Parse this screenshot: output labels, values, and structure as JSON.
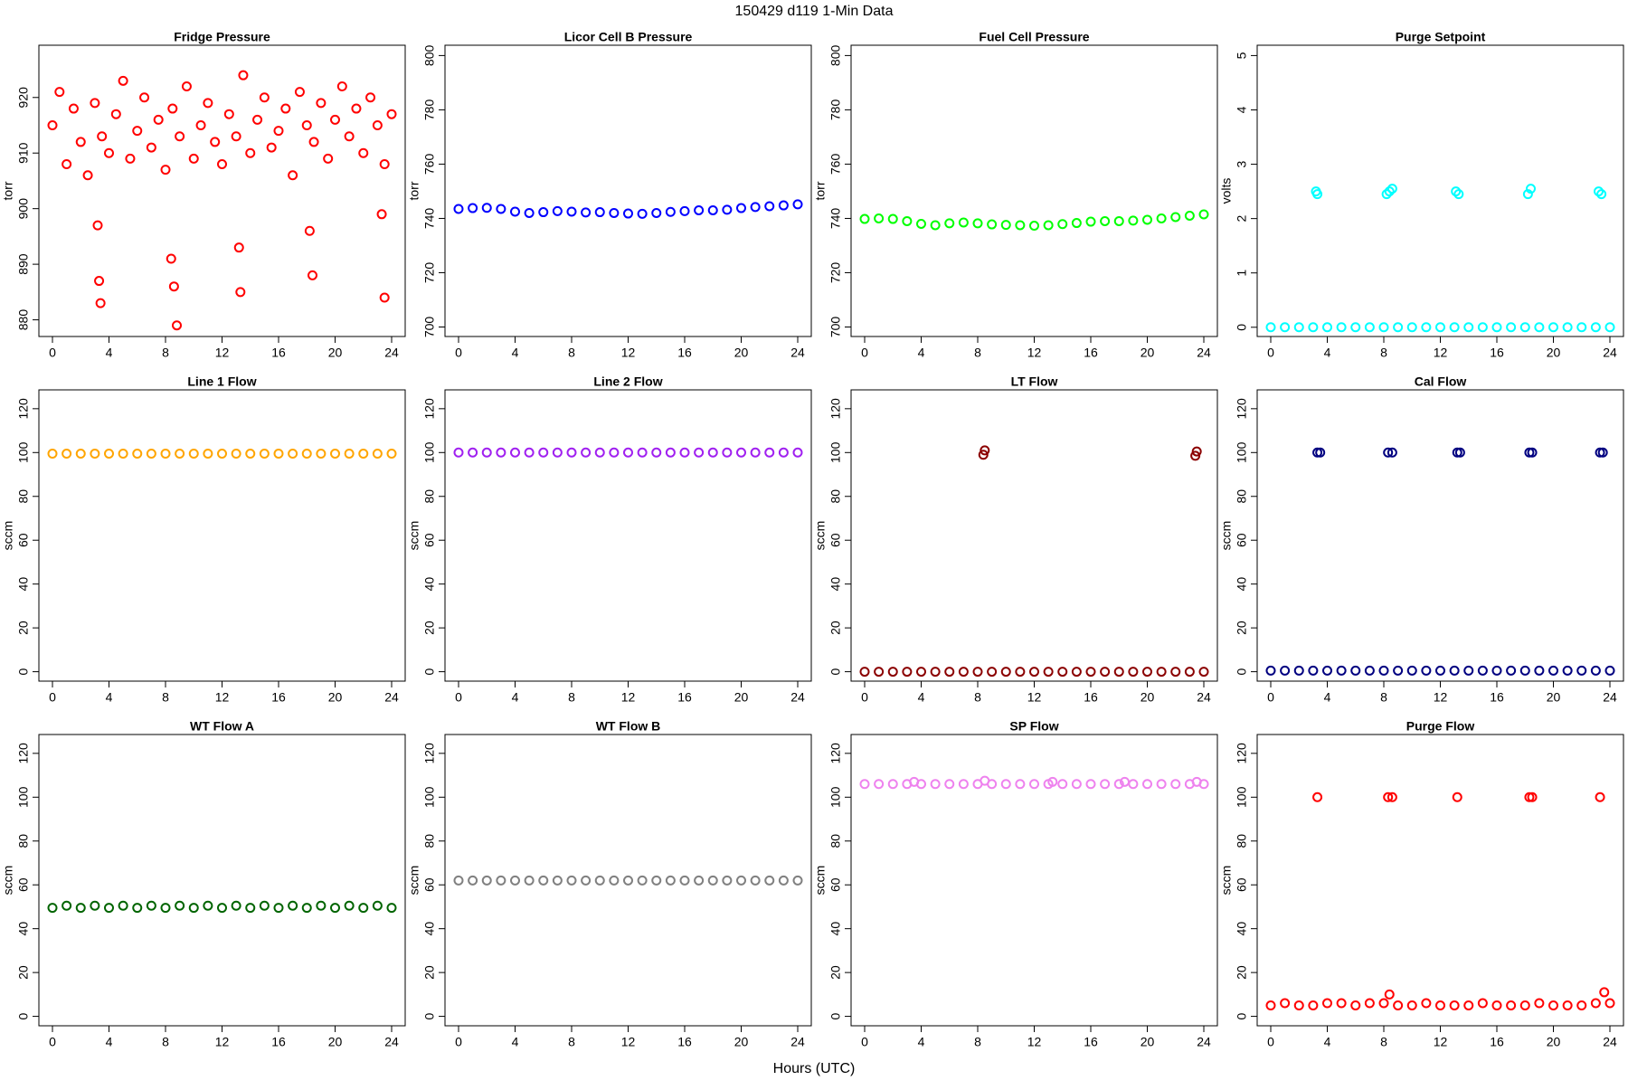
{
  "title": "150429   d119   1-Min Data",
  "xlabel": "Hours (UTC)",
  "chart_data": [
    {
      "type": "scatter",
      "title": "Fridge Pressure",
      "ylabel": "torr",
      "color": "#ff0000",
      "x": [
        0,
        0.5,
        1,
        1.5,
        2,
        2.5,
        3,
        3.5,
        4,
        4.5,
        5,
        5.5,
        6,
        6.5,
        7,
        7.5,
        8,
        8.5,
        9,
        9.5,
        10,
        10.5,
        11,
        11.5,
        12,
        12.5,
        13,
        13.5,
        14,
        14.5,
        15,
        15.5,
        16,
        16.5,
        17,
        17.5,
        18,
        18.5,
        19,
        19.5,
        20,
        20.5,
        21,
        21.5,
        22,
        22.5,
        23,
        23.5,
        24,
        3.2,
        3.3,
        3.4,
        8.4,
        8.6,
        8.8,
        13.2,
        13.3,
        18.2,
        18.4,
        23.3,
        23.5
      ],
      "values": [
        915,
        921,
        908,
        918,
        912,
        906,
        919,
        913,
        910,
        917,
        923,
        909,
        914,
        920,
        911,
        916,
        907,
        918,
        913,
        922,
        909,
        915,
        919,
        912,
        908,
        917,
        913,
        924,
        910,
        916,
        920,
        911,
        914,
        918,
        906,
        921,
        915,
        912,
        919,
        909,
        916,
        922,
        913,
        918,
        910,
        920,
        915,
        908,
        917,
        897,
        887,
        883,
        891,
        886,
        879,
        893,
        885,
        896,
        888,
        899,
        884
      ],
      "xlim": [
        -0.96,
        24.96
      ],
      "xticks": [
        0,
        4,
        8,
        12,
        16,
        20,
        24
      ],
      "ylim": [
        877,
        929.4
      ],
      "yticks": [
        880,
        890,
        900,
        910,
        920
      ]
    },
    {
      "type": "scatter",
      "title": "Licor Cell B Pressure",
      "ylabel": "torr",
      "color": "#0000ff",
      "x": [
        0,
        1,
        2,
        3,
        4,
        5,
        6,
        7,
        8,
        9,
        10,
        11,
        12,
        13,
        14,
        15,
        16,
        17,
        18,
        19,
        20,
        21,
        22,
        23,
        24
      ],
      "values": [
        743.5,
        743.8,
        743.9,
        743.5,
        742.5,
        742.0,
        742.3,
        742.7,
        742.5,
        742.2,
        742.3,
        742.0,
        741.8,
        741.7,
        742.0,
        742.4,
        742.7,
        743.0,
        743.0,
        743.2,
        743.8,
        744.2,
        744.5,
        744.8,
        745.2
      ],
      "xlim": [
        -0.96,
        24.96
      ],
      "xticks": [
        0,
        4,
        8,
        12,
        16,
        20,
        24
      ],
      "ylim": [
        696.5,
        803.8
      ],
      "yticks": [
        700,
        720,
        740,
        760,
        780,
        800
      ]
    },
    {
      "type": "scatter",
      "title": "Fuel Cell Pressure",
      "ylabel": "torr",
      "color": "#00ff00",
      "x": [
        0,
        1,
        2,
        3,
        4,
        5,
        6,
        7,
        8,
        9,
        10,
        11,
        12,
        13,
        14,
        15,
        16,
        17,
        18,
        19,
        20,
        21,
        22,
        23,
        24
      ],
      "values": [
        739.8,
        740.0,
        739.8,
        739.0,
        738.0,
        737.5,
        738.2,
        738.5,
        738.2,
        737.8,
        737.6,
        737.5,
        737.3,
        737.5,
        737.9,
        738.3,
        738.8,
        739.0,
        739.0,
        739.2,
        739.5,
        740.0,
        740.5,
        741.0,
        741.5
      ],
      "xlim": [
        -0.96,
        24.96
      ],
      "xticks": [
        0,
        4,
        8,
        12,
        16,
        20,
        24
      ],
      "ylim": [
        696.5,
        803.8
      ],
      "yticks": [
        700,
        720,
        740,
        760,
        780,
        800
      ]
    },
    {
      "type": "scatter",
      "title": "Purge Setpoint",
      "ylabel": "volts",
      "color": "#00ffff",
      "x": [
        0,
        1,
        2,
        3,
        4,
        5,
        6,
        7,
        8,
        9,
        10,
        11,
        12,
        13,
        14,
        15,
        16,
        17,
        18,
        19,
        20,
        21,
        22,
        23,
        24,
        3.2,
        3.3,
        8.2,
        8.4,
        8.6,
        13.1,
        13.3,
        18.2,
        18.4,
        23.2,
        23.4
      ],
      "values": [
        0,
        0,
        0,
        0,
        0,
        0,
        0,
        0,
        0,
        0,
        0,
        0,
        0,
        0,
        0,
        0,
        0,
        0,
        0,
        0,
        0,
        0,
        0,
        0,
        0,
        2.5,
        2.45,
        2.45,
        2.5,
        2.55,
        2.5,
        2.45,
        2.45,
        2.55,
        2.5,
        2.45
      ],
      "xlim": [
        -0.96,
        24.96
      ],
      "xticks": [
        0,
        4,
        8,
        12,
        16,
        20,
        24
      ],
      "ylim": [
        -0.17,
        5.19
      ],
      "yticks": [
        0,
        1,
        2,
        3,
        4,
        5
      ]
    },
    {
      "type": "scatter",
      "title": "Line 1 Flow",
      "ylabel": "sccm",
      "color": "#ffa500",
      "x": [
        0,
        1,
        2,
        3,
        4,
        5,
        6,
        7,
        8,
        9,
        10,
        11,
        12,
        13,
        14,
        15,
        16,
        17,
        18,
        19,
        20,
        21,
        22,
        23,
        24
      ],
      "values": [
        99.5,
        99.5,
        99.5,
        99.5,
        99.5,
        99.5,
        99.5,
        99.5,
        99.5,
        99.5,
        99.5,
        99.5,
        99.5,
        99.5,
        99.5,
        99.5,
        99.5,
        99.5,
        99.5,
        99.5,
        99.5,
        99.5,
        99.5,
        99.5,
        99.5
      ],
      "xlim": [
        -0.96,
        24.96
      ],
      "xticks": [
        0,
        4,
        8,
        12,
        16,
        20,
        24
      ],
      "ylim": [
        -4.3,
        128.6
      ],
      "yticks": [
        0,
        20,
        40,
        60,
        80,
        100,
        120
      ]
    },
    {
      "type": "scatter",
      "title": "Line 2 Flow",
      "ylabel": "sccm",
      "color": "#a020f0",
      "x": [
        0,
        1,
        2,
        3,
        4,
        5,
        6,
        7,
        8,
        9,
        10,
        11,
        12,
        13,
        14,
        15,
        16,
        17,
        18,
        19,
        20,
        21,
        22,
        23,
        24
      ],
      "values": [
        100,
        100,
        100,
        100,
        100,
        100,
        100,
        100,
        100,
        100,
        100,
        100,
        100,
        100,
        100,
        100,
        100,
        100,
        100,
        100,
        100,
        100,
        100,
        100,
        100
      ],
      "xlim": [
        -0.96,
        24.96
      ],
      "xticks": [
        0,
        4,
        8,
        12,
        16,
        20,
        24
      ],
      "ylim": [
        -4.3,
        128.6
      ],
      "yticks": [
        0,
        20,
        40,
        60,
        80,
        100,
        120
      ]
    },
    {
      "type": "scatter",
      "title": "LT Flow",
      "ylabel": "sccm",
      "color": "#8b0000",
      "x": [
        0,
        1,
        2,
        3,
        4,
        5,
        6,
        7,
        8,
        9,
        10,
        11,
        12,
        13,
        14,
        15,
        16,
        17,
        18,
        19,
        20,
        21,
        22,
        23,
        24,
        8.4,
        8.5,
        23.4,
        23.5
      ],
      "values": [
        0,
        0,
        0,
        0,
        0,
        0,
        0,
        0,
        0,
        0,
        0,
        0,
        0,
        0,
        0,
        0,
        0,
        0,
        0,
        0,
        0,
        0,
        0,
        0,
        0,
        99,
        101,
        98.5,
        100.5
      ],
      "xlim": [
        -0.96,
        24.96
      ],
      "xticks": [
        0,
        4,
        8,
        12,
        16,
        20,
        24
      ],
      "ylim": [
        -4.3,
        128.6
      ],
      "yticks": [
        0,
        20,
        40,
        60,
        80,
        100,
        120
      ]
    },
    {
      "type": "scatter",
      "title": "Cal Flow",
      "ylabel": "sccm",
      "color": "#000080",
      "x": [
        0,
        1,
        2,
        3,
        4,
        5,
        6,
        7,
        8,
        9,
        10,
        11,
        12,
        13,
        14,
        15,
        16,
        17,
        18,
        19,
        20,
        21,
        22,
        23,
        24,
        3.3,
        3.5,
        8.3,
        8.6,
        13.2,
        13.4,
        18.3,
        18.5,
        23.3,
        23.5
      ],
      "values": [
        0.5,
        0.5,
        0.5,
        0.5,
        0.5,
        0.5,
        0.5,
        0.5,
        0.5,
        0.5,
        0.5,
        0.5,
        0.5,
        0.5,
        0.5,
        0.5,
        0.5,
        0.5,
        0.5,
        0.5,
        0.5,
        0.5,
        0.5,
        0.5,
        0.5,
        100,
        100,
        100,
        100,
        100,
        100,
        100,
        100,
        100,
        100
      ],
      "xlim": [
        -0.96,
        24.96
      ],
      "xticks": [
        0,
        4,
        8,
        12,
        16,
        20,
        24
      ],
      "ylim": [
        -4.3,
        128.6
      ],
      "yticks": [
        0,
        20,
        40,
        60,
        80,
        100,
        120
      ]
    },
    {
      "type": "scatter",
      "title": "WT Flow A",
      "ylabel": "sccm",
      "color": "#006400",
      "x": [
        0,
        1,
        2,
        3,
        4,
        5,
        6,
        7,
        8,
        9,
        10,
        11,
        12,
        13,
        14,
        15,
        16,
        17,
        18,
        19,
        20,
        21,
        22,
        23,
        24
      ],
      "values": [
        49.5,
        50.5,
        49.5,
        50.5,
        49.5,
        50.5,
        49.5,
        50.5,
        49.5,
        50.5,
        49.5,
        50.5,
        49.5,
        50.5,
        49.5,
        50.5,
        49.5,
        50.5,
        49.5,
        50.5,
        49.5,
        50.5,
        49.5,
        50.5,
        49.5
      ],
      "xlim": [
        -0.96,
        24.96
      ],
      "xticks": [
        0,
        4,
        8,
        12,
        16,
        20,
        24
      ],
      "ylim": [
        -4.3,
        128.6
      ],
      "yticks": [
        0,
        20,
        40,
        60,
        80,
        100,
        120
      ]
    },
    {
      "type": "scatter",
      "title": "WT Flow B",
      "ylabel": "sccm",
      "color": "#808080",
      "x": [
        0,
        1,
        2,
        3,
        4,
        5,
        6,
        7,
        8,
        9,
        10,
        11,
        12,
        13,
        14,
        15,
        16,
        17,
        18,
        19,
        20,
        21,
        22,
        23,
        24
      ],
      "values": [
        62,
        62,
        62,
        62,
        62,
        62,
        62,
        62,
        62,
        62,
        62,
        62,
        62,
        62,
        62,
        62,
        62,
        62,
        62,
        62,
        62,
        62,
        62,
        62,
        62
      ],
      "xlim": [
        -0.96,
        24.96
      ],
      "xticks": [
        0,
        4,
        8,
        12,
        16,
        20,
        24
      ],
      "ylim": [
        -4.3,
        128.6
      ],
      "yticks": [
        0,
        20,
        40,
        60,
        80,
        100,
        120
      ]
    },
    {
      "type": "scatter",
      "title": "SP Flow",
      "ylabel": "sccm",
      "color": "#ee82ee",
      "x": [
        0,
        1,
        2,
        3,
        4,
        5,
        6,
        7,
        8,
        9,
        10,
        11,
        12,
        13,
        14,
        15,
        16,
        17,
        18,
        19,
        20,
        21,
        22,
        23,
        24,
        3.5,
        8.5,
        13.3,
        18.4,
        23.5
      ],
      "values": [
        106,
        106,
        106,
        106,
        106,
        106,
        106,
        106,
        106,
        106,
        106,
        106,
        106,
        106,
        106,
        106,
        106,
        106,
        106,
        106,
        106,
        106,
        106,
        106,
        106,
        107,
        107.5,
        107,
        107,
        107
      ],
      "xlim": [
        -0.96,
        24.96
      ],
      "xticks": [
        0,
        4,
        8,
        12,
        16,
        20,
        24
      ],
      "ylim": [
        -4.3,
        128.6
      ],
      "yticks": [
        0,
        20,
        40,
        60,
        80,
        100,
        120
      ]
    },
    {
      "type": "scatter",
      "title": "Purge Flow",
      "ylabel": "sccm",
      "color": "#ff0000",
      "x": [
        0,
        1,
        2,
        3,
        4,
        5,
        6,
        7,
        8,
        9,
        10,
        11,
        12,
        13,
        14,
        15,
        16,
        17,
        18,
        19,
        20,
        21,
        22,
        23,
        24,
        3.3,
        8.3,
        8.6,
        13.2,
        18.3,
        18.5,
        23.3,
        8.4,
        23.6
      ],
      "values": [
        5,
        6,
        5,
        5,
        6,
        6,
        5,
        6,
        6,
        5,
        5,
        6,
        5,
        5,
        5,
        6,
        5,
        5,
        5,
        6,
        5,
        5,
        5,
        6,
        6,
        100,
        100,
        100,
        100,
        100,
        100,
        100,
        10,
        11
      ],
      "xlim": [
        -0.96,
        24.96
      ],
      "xticks": [
        0,
        4,
        8,
        12,
        16,
        20,
        24
      ],
      "ylim": [
        -4.3,
        128.6
      ],
      "yticks": [
        0,
        20,
        40,
        60,
        80,
        100,
        120
      ]
    }
  ]
}
